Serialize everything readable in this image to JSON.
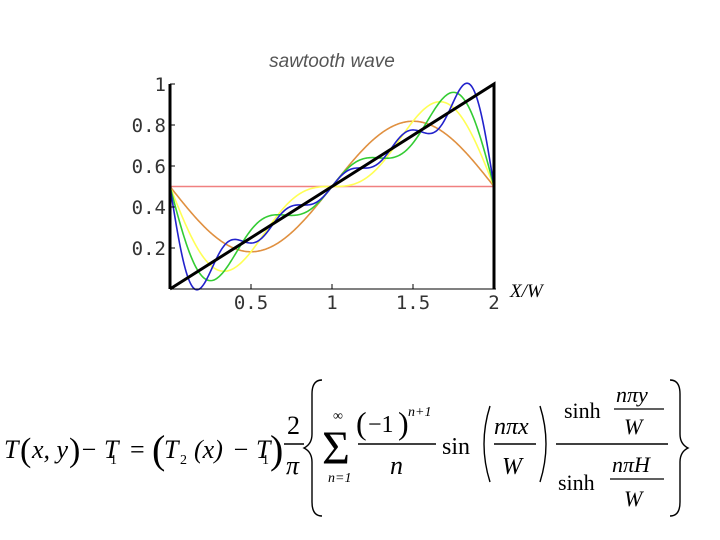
{
  "chart_data": {
    "type": "line",
    "title": "sawtooth wave",
    "xlabel": "X/W",
    "ylabel": "",
    "xlim": [
      0,
      2
    ],
    "ylim": [
      0,
      1
    ],
    "x_ticks": [
      0.5,
      1,
      1.5,
      2
    ],
    "x_tick_labels": [
      "0.5",
      "1",
      "1.5",
      "2"
    ],
    "y_ticks": [
      0.2,
      0.4,
      0.6,
      0.8,
      1
    ],
    "y_tick_labels": [
      "0.2",
      "0.4",
      "0.6",
      "0.8",
      "1"
    ],
    "grid": false,
    "legend": "none",
    "series": [
      {
        "color": "#000000",
        "kind": "sawtooth",
        "terms": 0
      },
      {
        "color": "#f08080",
        "kind": "fourier",
        "terms": 0
      },
      {
        "color": "#e09040",
        "kind": "fourier",
        "terms": 1
      },
      {
        "color": "#ffff55",
        "kind": "fourier",
        "terms": 2
      },
      {
        "color": "#33cc33",
        "kind": "fourier",
        "terms": 3
      },
      {
        "color": "#2222cc",
        "kind": "fourier",
        "terms": 5
      }
    ]
  },
  "formula": {
    "lhs_T": "T",
    "lhs_args": "x, y",
    "minus_T1": "− T",
    "sub1": "1",
    "equals": "=",
    "T2": "T",
    "sub2": "2",
    "x_arg": "(x)",
    "minus_T1b": "− T",
    "sub1b": "1",
    "two": "2",
    "pi": "π",
    "sum_upper": "∞",
    "sigma": "Σ",
    "sum_lower": "n=1",
    "minus_one": "−1",
    "exponent": "n+1",
    "n_den": "n",
    "sin": "sin",
    "npx": "nπx",
    "W1": "W",
    "sinh1": "sinh",
    "npy": "nπy",
    "W2": "W",
    "sinh2": "sinh",
    "npH": "nπH",
    "W3": "W"
  }
}
